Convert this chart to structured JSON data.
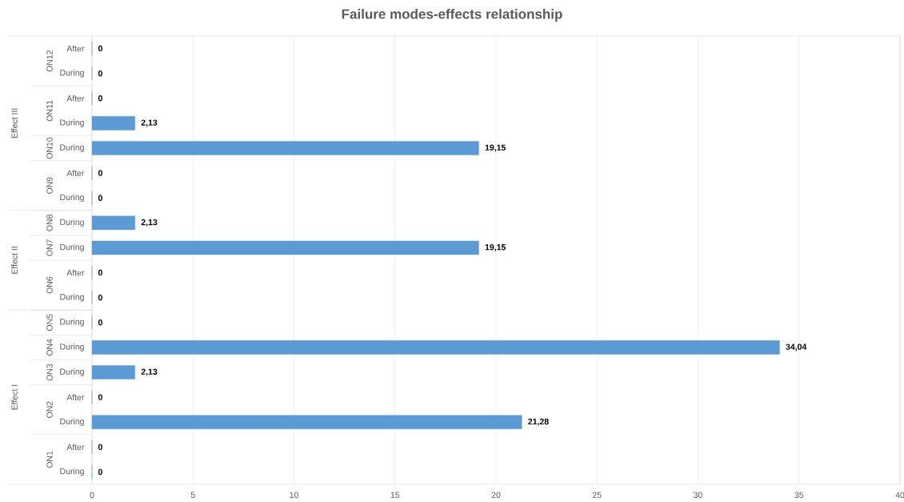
{
  "chart_data": {
    "type": "bar",
    "orientation": "horizontal",
    "title": "Failure modes-effects relationship",
    "categories": [
      "After",
      "During",
      "After",
      "During",
      "During",
      "After",
      "During",
      "During",
      "During",
      "After",
      "During",
      "During",
      "During",
      "During",
      "After",
      "During",
      "After",
      "During"
    ],
    "values": [
      0,
      0,
      0,
      2.13,
      19.15,
      0,
      0,
      2.13,
      19.15,
      0,
      0,
      0,
      34.04,
      2.13,
      0,
      21.28,
      0,
      0
    ],
    "value_labels": [
      "0",
      "0",
      "0",
      "2,13",
      "19,15",
      "0",
      "0",
      "2,13",
      "19,15",
      "0",
      "0",
      "0",
      "34,04",
      "2,13",
      "0",
      "21,28",
      "0",
      "0"
    ],
    "color": "#5b9bd5",
    "xlim": [
      0,
      40
    ],
    "xticks": [
      0,
      5,
      10,
      15,
      20,
      25,
      30,
      35,
      40
    ],
    "grid": "x",
    "annotations": [
      "ON12",
      "ON11",
      "ON10",
      "ON9",
      "ON8",
      "ON7",
      "ON6",
      "ON5",
      "ON4",
      "ON3",
      "ON2",
      "ON1",
      "Effect III",
      "Effect II",
      "Effect I"
    ]
  }
}
